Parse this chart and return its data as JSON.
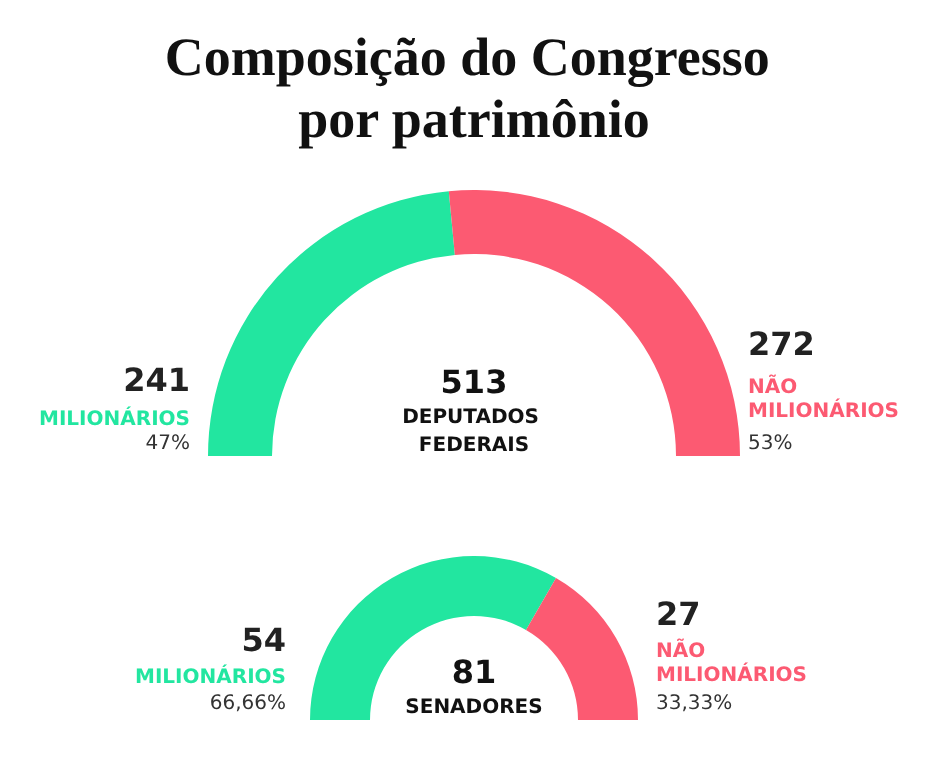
{
  "chart_data": [
    {
      "type": "donut",
      "title": "Composição do Congresso por patrimônio",
      "categories": [
        "MILIONÁRIOS",
        "NÃO MILIONÁRIOS"
      ],
      "values": [
        241,
        272
      ],
      "colors": [
        "#22e6a0",
        "#fc5a72"
      ],
      "data_labels": true,
      "annotations": [
        "47%",
        "53%",
        "513",
        "DEPUTADOS FEDERAIS"
      ]
    },
    {
      "type": "donut",
      "categories": [
        "MILIONÁRIOS",
        "NÃO MILIONÁRIOS"
      ],
      "values": [
        54,
        27
      ],
      "colors": [
        "#22e6a0",
        "#fc5a72"
      ],
      "data_labels": true,
      "annotations": [
        "66,66%",
        "33,33%",
        "81",
        "SENADORES"
      ]
    }
  ]
}
